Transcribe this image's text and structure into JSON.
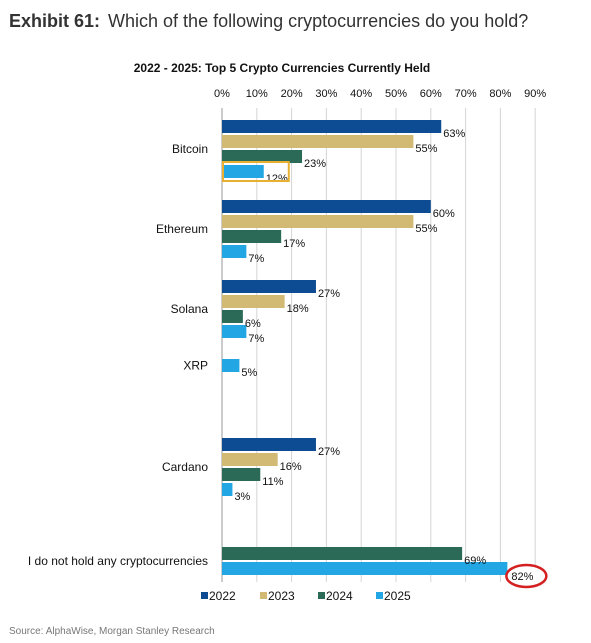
{
  "exhibit": {
    "number": "Exhibit 61:",
    "question": "Which of the following cryptocurrencies do you hold?"
  },
  "source": "Source: AlphaWise, Morgan Stanley Research",
  "chart_data": {
    "type": "bar",
    "orientation": "horizontal",
    "title": "2022 - 2025: Top 5 Crypto Currencies Currently Held",
    "xlim": [
      0,
      90
    ],
    "x_ticks": [
      "0%",
      "10%",
      "20%",
      "30%",
      "40%",
      "50%",
      "60%",
      "70%",
      "80%",
      "90%"
    ],
    "categories": [
      "Bitcoin",
      "Ethereum",
      "Solana",
      "XRP",
      "Cardano",
      "I do not hold any cryptocurrencies"
    ],
    "series": [
      {
        "name": "2022",
        "color": "#0d4c92",
        "values": [
          63,
          60,
          27,
          null,
          27,
          null
        ]
      },
      {
        "name": "2023",
        "color": "#d2b974",
        "values": [
          55,
          55,
          18,
          null,
          16,
          null
        ]
      },
      {
        "name": "2024",
        "color": "#2a6a56",
        "values": [
          23,
          17,
          6,
          null,
          11,
          69
        ]
      },
      {
        "name": "2025",
        "color": "#22a7e4",
        "values": [
          12,
          7,
          7,
          5,
          3,
          82
        ]
      }
    ],
    "legend_position": "bottom",
    "grid": true,
    "highlights": [
      {
        "category": "Bitcoin",
        "series": "2025",
        "style": "box",
        "color": "#e8b030"
      },
      {
        "category": "I do not hold any cryptocurrencies",
        "series": "2025",
        "style": "circle",
        "color": "#d42020"
      }
    ]
  }
}
